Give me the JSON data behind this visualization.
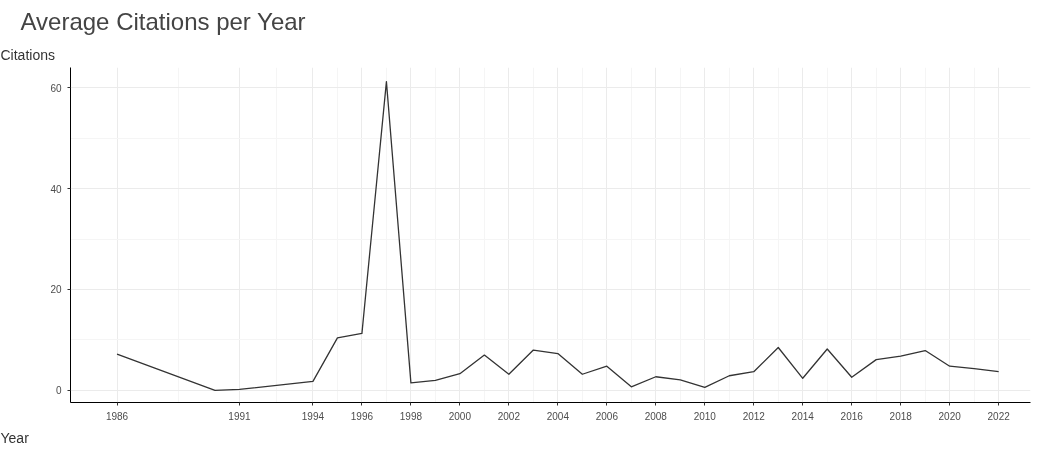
{
  "chart_data": {
    "type": "line",
    "title": "Average Citations per Year",
    "xlabel": "Year",
    "ylabel": "Citations",
    "x": [
      1986,
      1990,
      1991,
      1994,
      1995,
      1996,
      1997,
      1998,
      1999,
      2000,
      2001,
      2002,
      2003,
      2004,
      2005,
      2006,
      2007,
      2008,
      2009,
      2010,
      2011,
      2012,
      2013,
      2014,
      2015,
      2016,
      2017,
      2018,
      2019,
      2020,
      2021,
      2022
    ],
    "series": [
      {
        "color": "#333333",
        "values": [
          7.2,
          0,
          0.2,
          1.8,
          10.4,
          11.3,
          61.2,
          1.5,
          2.0,
          3.3,
          7.0,
          3.2,
          8.0,
          7.3,
          3.2,
          4.8,
          0.7,
          2.7,
          2.1,
          0.6,
          2.9,
          3.7,
          8.5,
          2.4,
          8.2,
          2.6,
          6.1,
          6.8,
          7.9,
          4.8,
          4.3,
          3.7
        ]
      }
    ],
    "xlim": [
      1984.1,
      2023.3
    ],
    "ylim": [
      -2.4,
      64
    ],
    "xticks": [
      1986,
      1991,
      1994,
      1996,
      1998,
      2000,
      2002,
      2004,
      2006,
      2008,
      2010,
      2012,
      2014,
      2016,
      2018,
      2020,
      2022
    ],
    "yticks": [
      0,
      20,
      40,
      60
    ],
    "grid": true,
    "marker": "none",
    "line_style": "solid"
  }
}
